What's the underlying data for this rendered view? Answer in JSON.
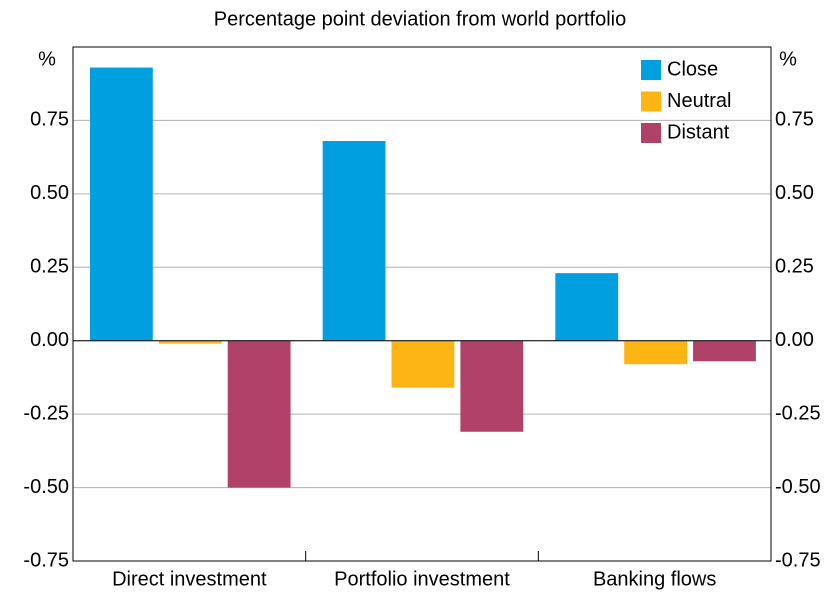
{
  "chart_data": {
    "type": "bar",
    "subtitle": "Percentage point deviation from world portfolio",
    "y_unit": "%",
    "categories": [
      "Direct investment",
      "Portfolio investment",
      "Banking flows"
    ],
    "series": [
      {
        "name": "Close",
        "color": "#00a0e0",
        "values": [
          0.93,
          0.68,
          0.23
        ]
      },
      {
        "name": "Neutral",
        "color": "#fdb515",
        "values": [
          -0.01,
          -0.16,
          -0.08
        ]
      },
      {
        "name": "Distant",
        "color": "#b0426a",
        "values": [
          -0.5,
          -0.31,
          -0.07
        ]
      }
    ],
    "ylim": [
      -0.75,
      1.0
    ],
    "yticks": [
      {
        "value": -0.75,
        "label": "-0.75"
      },
      {
        "value": -0.5,
        "label": "-0.50"
      },
      {
        "value": -0.25,
        "label": "-0.25"
      },
      {
        "value": 0,
        "label": "0.00"
      },
      {
        "value": 0.25,
        "label": "0.25"
      },
      {
        "value": 0.5,
        "label": "0.50"
      },
      {
        "value": 0.75,
        "label": "0.75"
      }
    ],
    "grid": true,
    "legend": "top-right"
  }
}
